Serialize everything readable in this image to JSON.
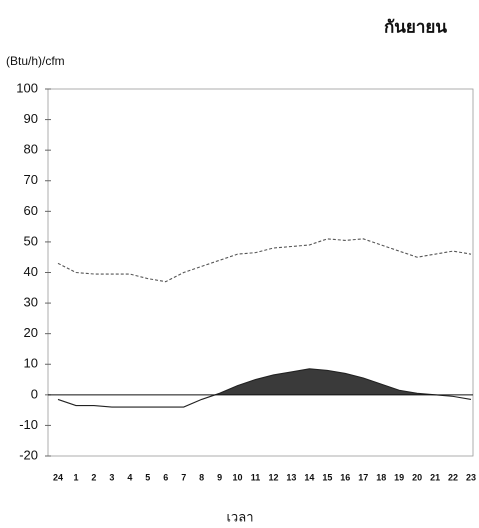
{
  "chart_data": {
    "type": "line",
    "title": "กันยายน",
    "y_label": "(Btu/h)/cfm",
    "x_label": "เวลา",
    "categories": [
      "24",
      "1",
      "2",
      "3",
      "4",
      "5",
      "6",
      "7",
      "8",
      "9",
      "10",
      "11",
      "12",
      "13",
      "14",
      "15",
      "16",
      "17",
      "18",
      "19",
      "20",
      "21",
      "22",
      "23"
    ],
    "series": [
      {
        "color": "#555555",
        "line_style": "dashed",
        "values": [
          43,
          40,
          39.5,
          39.5,
          39.5,
          38,
          37,
          40,
          42,
          44,
          46,
          46.5,
          48,
          48.5,
          49,
          51,
          50.5,
          51,
          49,
          47,
          45,
          46,
          47,
          46
        ]
      },
      {
        "color": "#222222",
        "line_style": "solid",
        "fill_positive": true,
        "fill_color": "#3a3a3a",
        "values": [
          -1.5,
          -3.5,
          -3.5,
          -4,
          -4,
          -4,
          -4,
          -4,
          -1.5,
          0.5,
          3,
          5,
          6.5,
          7.5,
          8.5,
          8,
          7,
          5.5,
          3.5,
          1.5,
          0.5,
          0,
          -0.5,
          -1.5
        ]
      }
    ],
    "ylim": [
      -20,
      100
    ],
    "yticks": [
      -20,
      -10,
      0,
      10,
      20,
      30,
      40,
      50,
      60,
      70,
      80,
      90,
      100
    ],
    "zero_line": true,
    "grid": false
  }
}
